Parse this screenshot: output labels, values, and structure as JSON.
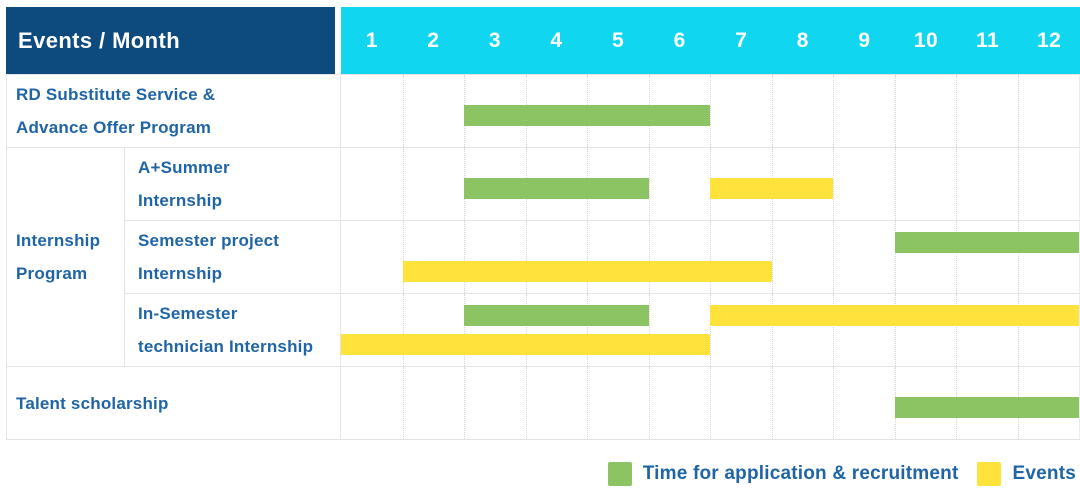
{
  "colors": {
    "header_navy": "#0D4A7E",
    "header_cyan": "#10D6F0",
    "label_blue": "#1F64A6",
    "row_border": "#E4E4E4",
    "grid_dotted": "#D6D6D6",
    "bar_green": "#8CC464",
    "bar_yellow": "#FFE23C"
  },
  "chart_data": {
    "type": "table",
    "subtype": "gantt-schedule",
    "title": "Events / Month",
    "x_axis_label": "Month",
    "months": [
      "1",
      "2",
      "3",
      "4",
      "5",
      "6",
      "7",
      "8",
      "9",
      "10",
      "11",
      "12"
    ],
    "x_range": [
      1,
      12
    ],
    "grid": "dotted-vertical",
    "legend_position": "bottom-right",
    "group_label": "Internship Program",
    "rows": [
      {
        "group": "",
        "label": "RD Substitute Service &\nAdvance Offer Program",
        "bars": [
          {
            "series": "Time for application & recruitment",
            "start_month": 3,
            "end_month": 6,
            "track": "single"
          }
        ]
      },
      {
        "group": "Internship Program",
        "label": "A+Summer\nInternship",
        "bars": [
          {
            "series": "Time for application & recruitment",
            "start_month": 3,
            "end_month": 5,
            "track": "single"
          },
          {
            "series": "Events",
            "start_month": 7,
            "end_month": 8,
            "track": "single"
          }
        ]
      },
      {
        "group": "Internship Program",
        "label": "Semester project\nInternship",
        "bars": [
          {
            "series": "Time for application & recruitment",
            "start_month": 10,
            "end_month": 12,
            "track": "upper"
          },
          {
            "series": "Events",
            "start_month": 2,
            "end_month": 7,
            "track": "lower"
          }
        ]
      },
      {
        "group": "Internship Program",
        "label": "In-Semester\ntechnician Internship",
        "bars": [
          {
            "series": "Time for application & recruitment",
            "start_month": 3,
            "end_month": 5,
            "track": "upper"
          },
          {
            "series": "Events",
            "start_month": 7,
            "end_month": 12,
            "track": "upper"
          },
          {
            "series": "Events",
            "start_month": 1,
            "end_month": 6,
            "track": "lower"
          }
        ]
      },
      {
        "group": "",
        "label": "Talent scholarship",
        "bars": [
          {
            "series": "Time for application & recruitment",
            "start_month": 10,
            "end_month": 12,
            "track": "single"
          }
        ]
      }
    ],
    "legend": [
      {
        "name": "Time for application & recruitment",
        "color": "#8CC464"
      },
      {
        "name": "Events",
        "color": "#FFE23C"
      }
    ]
  }
}
